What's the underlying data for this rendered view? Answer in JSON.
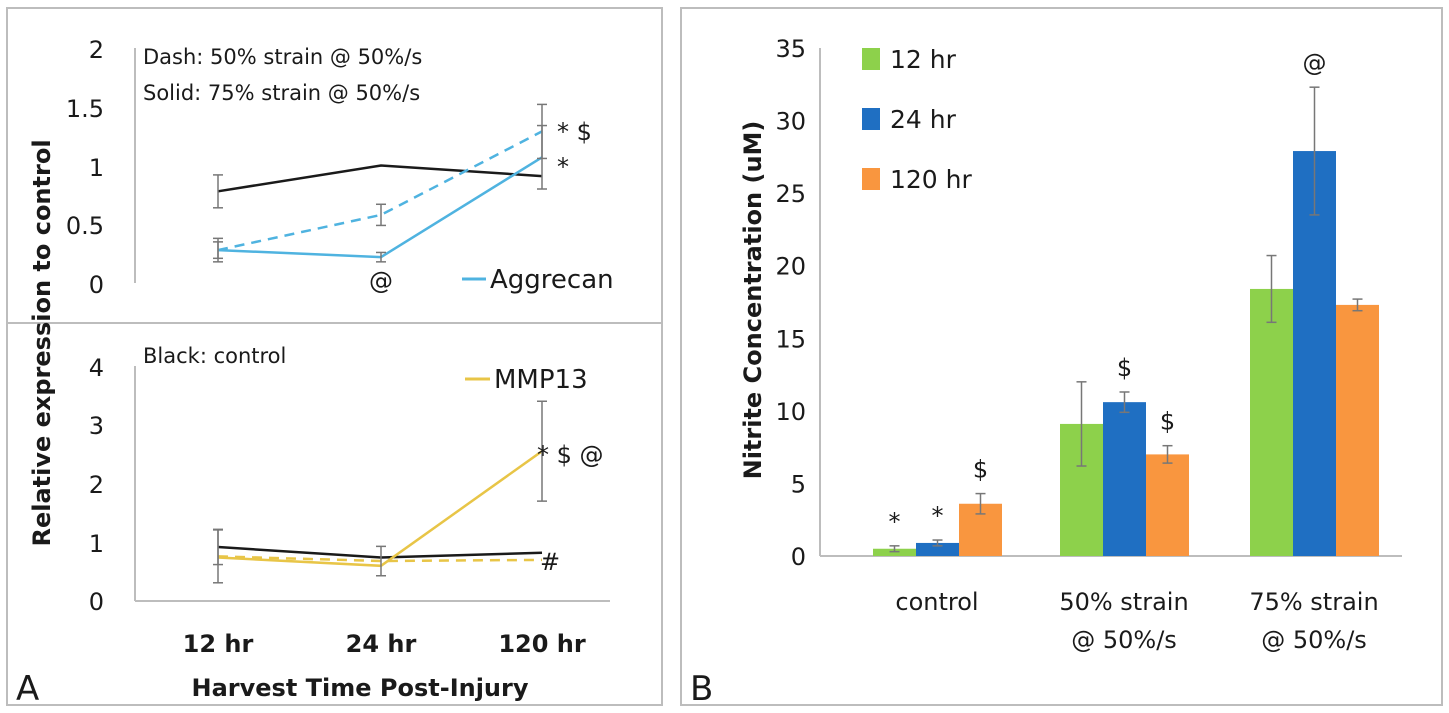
{
  "panel_a": {
    "letter": "A",
    "ylabel": "Relative expression to control",
    "xlabel": "Harvest Time Post-Injury",
    "categories": [
      "12 hr",
      "24 hr",
      "120 hr"
    ],
    "top": {
      "notes": [
        "Dash: 50% strain @ 50%/s",
        "Solid: 75% strain @ 50%/s"
      ],
      "legend": "Aggrecan",
      "yticks": [
        "0",
        "0.5",
        "1",
        "1.5",
        "2"
      ],
      "sig_dash_120": "* $",
      "sig_solid_120": "*",
      "sig_solid_24": "@"
    },
    "bottom": {
      "note": "Black: control",
      "legend": "MMP13",
      "yticks": [
        "0",
        "1",
        "2",
        "3",
        "4"
      ],
      "sig_solid_120": "* $ @",
      "sig_dash_120": "#"
    }
  },
  "panel_b": {
    "letter": "B",
    "ylabel": "Nitrite Concentration (uM)",
    "yticks": [
      "0",
      "5",
      "10",
      "15",
      "20",
      "25",
      "30",
      "35"
    ],
    "categories": [
      [
        "control"
      ],
      [
        "50% strain",
        "@ 50%/s"
      ],
      [
        "75% strain",
        "@ 50%/s"
      ]
    ],
    "legend": [
      "12 hr",
      "24 hr",
      "120 hr"
    ],
    "annotations": [
      "*",
      "*",
      "$",
      "$",
      "$",
      "@"
    ]
  },
  "colors": {
    "control": "#1a1a1a",
    "aggrecan": "#4fb3e0",
    "mmp13": "#e8c547",
    "bar_12hr": "#8dd14b",
    "bar_24hr": "#1f6fc2",
    "bar_120hr": "#f9963f",
    "error_bar": "#777777"
  },
  "chart_data": [
    {
      "type": "line",
      "ylabel": "Relative expression to control",
      "categories": [
        "12 hr",
        "24 hr",
        "120 hr"
      ],
      "ylim": [
        0,
        2
      ],
      "series": [
        {
          "name": "Black: control",
          "values": [
            0.78,
            1.0,
            0.91
          ],
          "errors": [
            0.14,
            0.0,
            0.0
          ]
        },
        {
          "name": "Dash: 50% strain @ 50%/s",
          "values": [
            0.28,
            0.58,
            1.29
          ],
          "errors": [
            0.1,
            0.09,
            0.23
          ]
        },
        {
          "name": "Solid: 75% strain @ 50%/s",
          "values": [
            0.28,
            0.22,
            1.07
          ],
          "errors": [
            0.07,
            0.04,
            0.27
          ]
        }
      ],
      "legend": "Aggrecan",
      "annotations": [
        "* $",
        "*",
        "@"
      ]
    },
    {
      "type": "line",
      "ylabel": "Relative expression to control",
      "xlabel": "Harvest Time Post-Injury",
      "categories": [
        "12 hr",
        "24 hr",
        "120 hr"
      ],
      "ylim": [
        0,
        4
      ],
      "series": [
        {
          "name": "Black: control",
          "values": [
            0.92,
            0.74,
            0.82
          ],
          "errors": [
            0.3,
            0.0,
            0.0
          ]
        },
        {
          "name": "Dash: 50% strain @ 50%/s",
          "values": [
            0.76,
            0.68,
            0.7
          ],
          "errors": [
            0.45,
            0.25,
            0.0
          ]
        },
        {
          "name": "Solid: 75% strain @ 50%/s",
          "values": [
            0.74,
            0.6,
            2.55
          ],
          "errors": [
            0.0,
            0.0,
            0.85
          ]
        }
      ],
      "legend": "MMP13",
      "annotations": [
        "* $ @",
        "#"
      ]
    },
    {
      "type": "bar",
      "ylabel": "Nitrite Concentration (uM)",
      "categories": [
        "control",
        "50% strain @ 50%/s",
        "75% strain @ 50%/s"
      ],
      "ylim": [
        0,
        35
      ],
      "series": [
        {
          "name": "12 hr",
          "values": [
            0.5,
            9.1,
            18.4
          ],
          "errors": [
            0.2,
            2.9,
            2.3
          ]
        },
        {
          "name": "24 hr",
          "values": [
            0.9,
            10.6,
            27.9
          ],
          "errors": [
            0.2,
            0.7,
            4.4
          ]
        },
        {
          "name": "120 hr",
          "values": [
            3.6,
            7.0,
            17.3
          ],
          "errors": [
            0.7,
            0.6,
            0.4
          ]
        }
      ],
      "legend_position": "top-left",
      "annotations": [
        "*",
        "*",
        "$",
        "$",
        "$",
        "@"
      ]
    }
  ]
}
